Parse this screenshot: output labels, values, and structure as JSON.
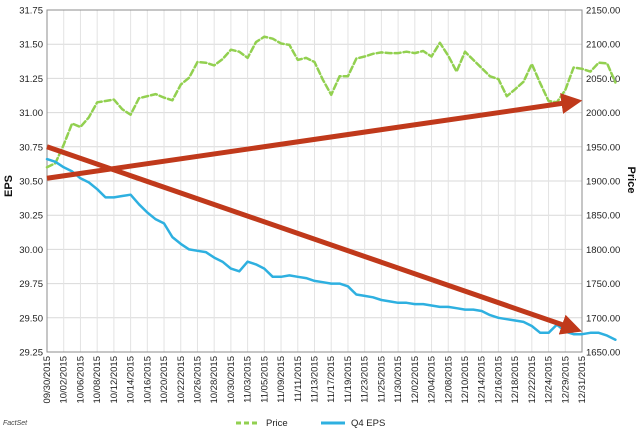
{
  "chart_data": {
    "type": "line",
    "title": "",
    "source_label": "FactSet",
    "y_left": {
      "label": "EPS",
      "range": [
        29.25,
        31.75
      ],
      "ticks": [
        "29.25",
        "29.50",
        "29.75",
        "30.00",
        "30.25",
        "30.50",
        "30.75",
        "31.00",
        "31.25",
        "31.50",
        "31.75"
      ]
    },
    "y_right": {
      "label": "Price",
      "range": [
        1650,
        2150
      ],
      "ticks": [
        "1650.00",
        "1700.00",
        "1750.00",
        "1800.00",
        "1850.00",
        "1900.00",
        "1950.00",
        "2000.00",
        "2050.00",
        "2100.00",
        "2150.00"
      ]
    },
    "x_tick_labels": [
      "09/30/2015",
      "10/02/2015",
      "10/06/2015",
      "10/08/2015",
      "10/12/2015",
      "10/14/2015",
      "10/16/2015",
      "10/20/2015",
      "10/22/2015",
      "10/26/2015",
      "10/28/2015",
      "10/30/2015",
      "11/03/2015",
      "11/05/2015",
      "11/09/2015",
      "11/11/2015",
      "11/13/2015",
      "11/17/2015",
      "11/19/2015",
      "11/23/2015",
      "11/25/2015",
      "11/30/2015",
      "12/02/2015",
      "12/04/2015",
      "12/08/2015",
      "12/10/2015",
      "12/14/2015",
      "12/16/2015",
      "12/18/2015",
      "12/22/2015",
      "12/24/2015",
      "12/29/2015",
      "12/31/2015"
    ],
    "grid": true,
    "legend_position": "bottom-center",
    "series": [
      {
        "name": "Price",
        "axis": "right",
        "color": "#92d050",
        "style": "dashed",
        "values": [
          1920,
          1926,
          1953,
          1984,
          1979,
          1993,
          2015,
          2017,
          2019,
          2005,
          1997,
          2021,
          2024,
          2027,
          2022,
          2018,
          2041,
          2051,
          2074,
          2073,
          2069,
          2078,
          2092,
          2089,
          2080,
          2103,
          2111,
          2108,
          2101,
          2099,
          2077,
          2080,
          2074,
          2048,
          2026,
          2053,
          2053,
          2079,
          2082,
          2086,
          2088,
          2087,
          2087,
          2089,
          2087,
          2090,
          2082,
          2102,
          2083,
          2060,
          2089,
          2077,
          2065,
          2053,
          2049,
          2024,
          2034,
          2045,
          2071,
          2043,
          2017,
          2015,
          2033,
          2066,
          2064,
          2060,
          2073,
          2072,
          2044
        ],
        "x_index_step": 0.5
      },
      {
        "name": "Q4 EPS",
        "axis": "left",
        "color": "#2eb0e0",
        "style": "solid",
        "values": [
          30.66,
          30.64,
          30.6,
          30.57,
          30.52,
          30.49,
          30.44,
          30.38,
          30.38,
          30.39,
          30.4,
          30.33,
          30.27,
          30.22,
          30.19,
          30.09,
          30.04,
          30.0,
          29.99,
          29.98,
          29.94,
          29.91,
          29.86,
          29.84,
          29.91,
          29.89,
          29.86,
          29.8,
          29.8,
          29.81,
          29.8,
          29.79,
          29.77,
          29.76,
          29.75,
          29.75,
          29.73,
          29.67,
          29.66,
          29.65,
          29.63,
          29.62,
          29.61,
          29.61,
          29.6,
          29.6,
          29.59,
          29.58,
          29.58,
          29.57,
          29.56,
          29.56,
          29.55,
          29.52,
          29.5,
          29.49,
          29.48,
          29.47,
          29.44,
          29.39,
          29.39,
          29.45,
          29.4,
          29.38,
          29.38,
          29.39,
          29.39,
          29.37,
          29.34
        ],
        "x_index_step": 0.5
      }
    ],
    "annotations": [
      {
        "type": "arrow",
        "color": "#c0391b",
        "from": {
          "x_label": "09/30/2015",
          "y_left": 30.52
        },
        "to": {
          "x_label": "12/31/2015",
          "y_left": 31.08
        }
      },
      {
        "type": "arrow",
        "color": "#c0391b",
        "from": {
          "x_label": "09/30/2015",
          "y_left": 30.75
        },
        "to": {
          "x_label": "12/31/2015",
          "y_left": 29.42
        }
      }
    ]
  },
  "legend": {
    "items": [
      {
        "label": "Price",
        "color": "#92d050",
        "style": "dashed"
      },
      {
        "label": "Q4 EPS",
        "color": "#2eb0e0",
        "style": "solid"
      }
    ]
  }
}
